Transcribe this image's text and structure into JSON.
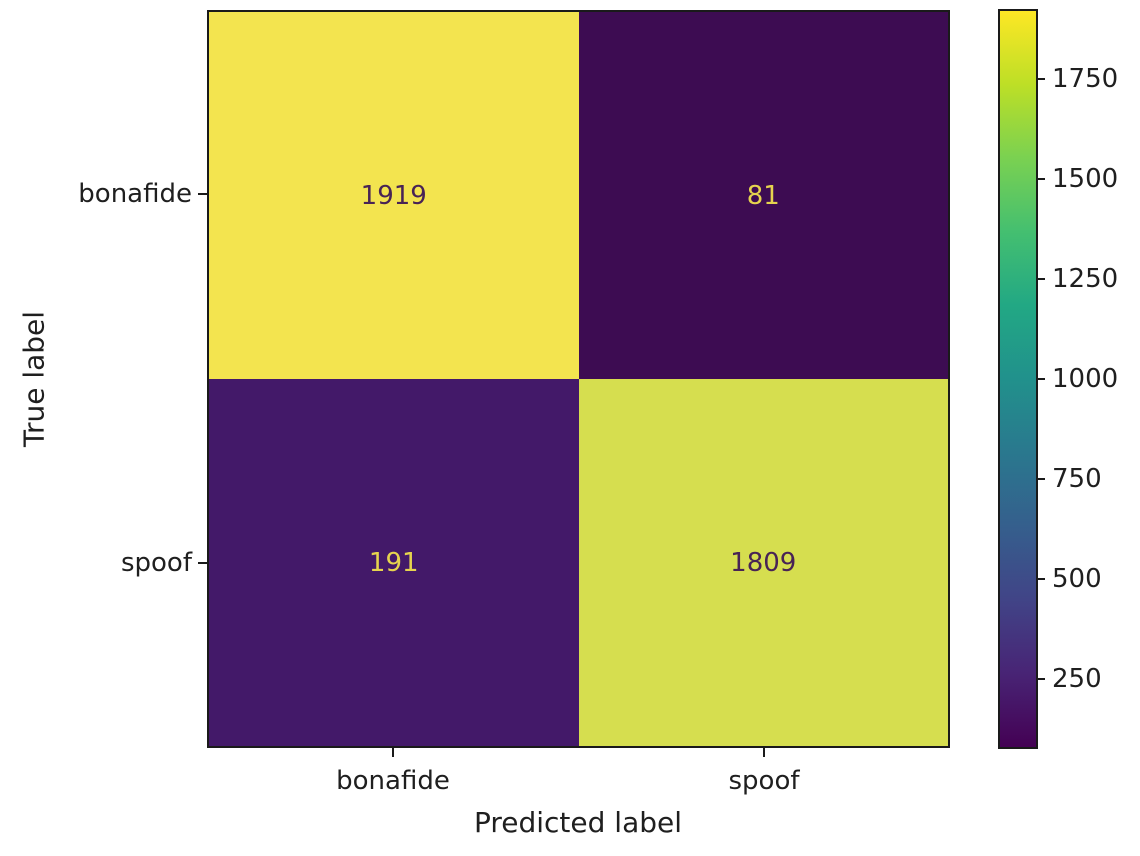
{
  "figure": {
    "background": "#ffffff",
    "axis_color": "#1a1a1a",
    "text_color": "#1f1f1f"
  },
  "chart_data": {
    "type": "heatmap",
    "subtype": "confusion-matrix",
    "title": "",
    "xlabel": "Predicted label",
    "ylabel": "True label",
    "x_tick_labels": [
      "bonafide",
      "spoof"
    ],
    "y_tick_labels": [
      "bonafide",
      "spoof"
    ],
    "matrix": [
      [
        1919,
        81
      ],
      [
        191,
        1809
      ]
    ],
    "cell_labels": [
      [
        "1919",
        "81"
      ],
      [
        "191",
        "1809"
      ]
    ],
    "vmin": 81,
    "vmax": 1919,
    "colormap": "viridis",
    "grid": false,
    "legend_position": "right-colorbar",
    "colorbar_ticks": [
      250,
      500,
      750,
      1000,
      1250,
      1500,
      1750
    ],
    "cell_colors": [
      [
        "#f3e44f",
        "#3d0c52"
      ],
      [
        "#431969",
        "#d6de4f"
      ]
    ],
    "cell_text_colors": [
      [
        "#482355",
        "#e6d44e"
      ],
      [
        "#e6d44e",
        "#482355"
      ]
    ],
    "viridis_stops": [
      "#440154",
      "#482475",
      "#414487",
      "#355f8d",
      "#2a788e",
      "#21918c",
      "#22a884",
      "#44bf70",
      "#7ad151",
      "#bddf26",
      "#fde725"
    ]
  }
}
